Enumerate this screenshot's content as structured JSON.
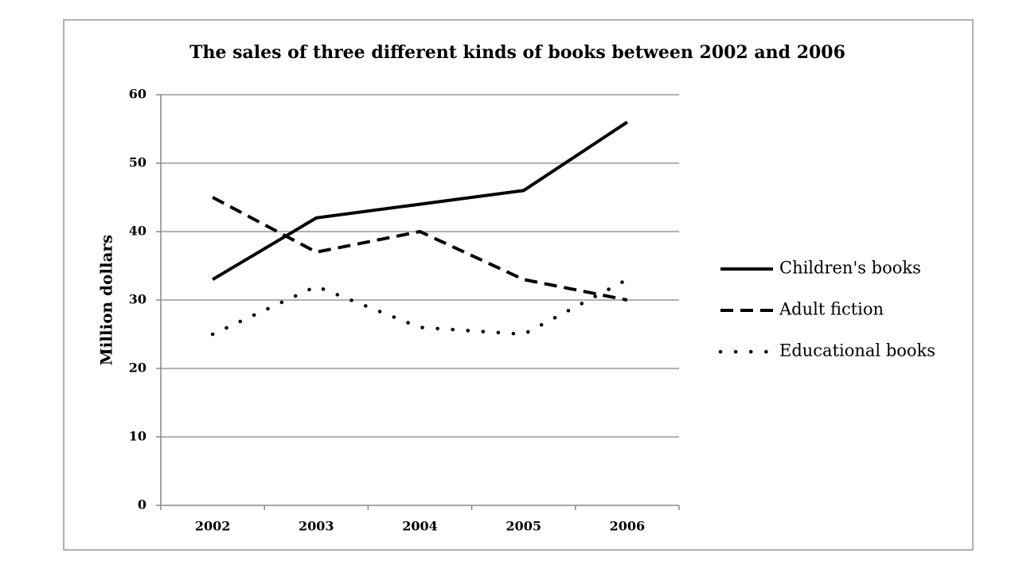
{
  "chart_data": {
    "type": "line",
    "title": "The sales of three different kinds of books between 2002 and 2006",
    "y_label": "Million dollars",
    "categories": [
      "2002",
      "2003",
      "2004",
      "2005",
      "2006"
    ],
    "series": [
      {
        "name": "Children's books",
        "color": "#000000",
        "dash": "solid",
        "values": [
          33,
          42,
          44,
          46,
          56
        ]
      },
      {
        "name": "Adult fiction",
        "color": "#000000",
        "dash": "dashed",
        "values": [
          45,
          37,
          40,
          33,
          30
        ]
      },
      {
        "name": "Educational books",
        "color": "#000000",
        "dash": "dotted",
        "values": [
          25,
          32,
          26,
          25,
          33
        ]
      }
    ],
    "ylim": [
      0,
      60
    ],
    "yticks": [
      0,
      10,
      20,
      30,
      40,
      50,
      60
    ],
    "grid": true,
    "legend": "right"
  }
}
